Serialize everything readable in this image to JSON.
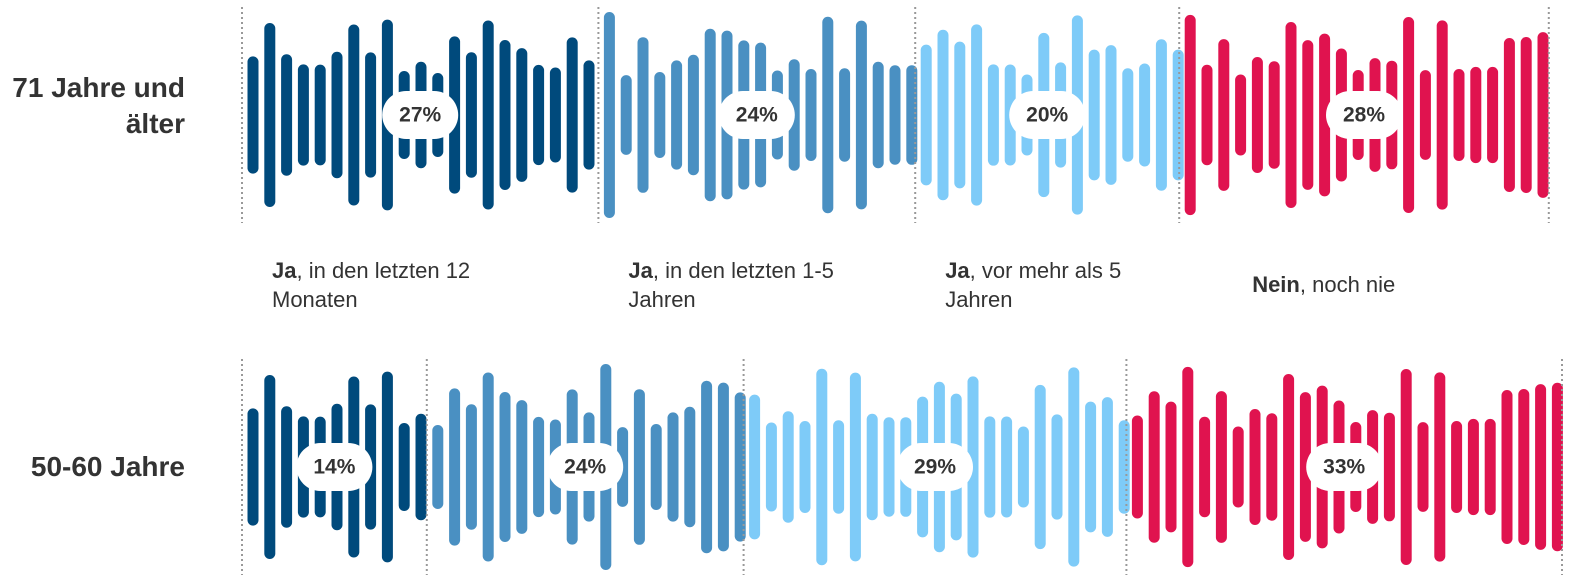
{
  "chart_data": {
    "type": "stacked-wave",
    "categories": [
      "71 Jahre und älter",
      "50-60 Jahre"
    ],
    "series": [
      {
        "name": "Ja, in den letzten 12 Monaten",
        "color": "#004a7c",
        "values": [
          27,
          14
        ],
        "value_labels": [
          "27%",
          "14%"
        ]
      },
      {
        "name": "Ja, in den letzten 1-5 Jahren",
        "color": "#4a90c2",
        "values": [
          24,
          24
        ],
        "value_labels": [
          "24%",
          "24%"
        ]
      },
      {
        "name": "Ja, vor mehr als 5 Jahren",
        "color": "#7ecbf8",
        "values": [
          20,
          29
        ],
        "value_labels": [
          "20%",
          "29%"
        ]
      },
      {
        "name": "Nein, noch nie",
        "color": "#e0134f",
        "values": [
          28,
          33
        ],
        "value_labels": [
          "28%",
          "33%"
        ]
      }
    ],
    "xlim": [
      0,
      100
    ]
  }
}
